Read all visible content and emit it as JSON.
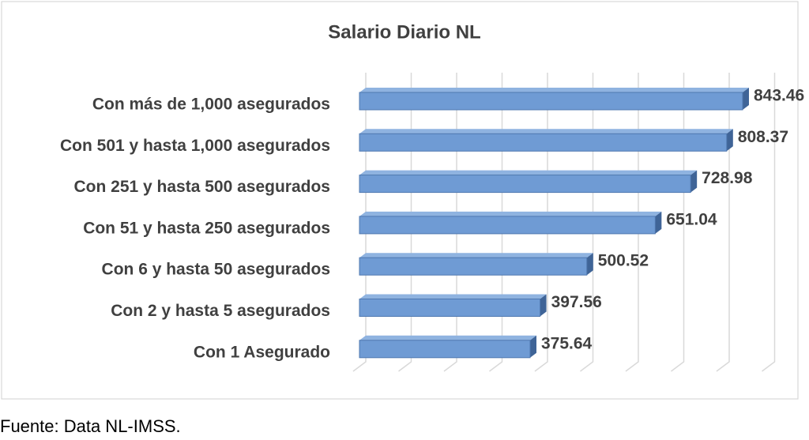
{
  "chart_data": {
    "type": "bar",
    "orientation": "horizontal",
    "title": "Salario Diario NL",
    "categories": [
      "Con más de 1,000 asegurados",
      "Con 501 y hasta 1,000 asegurados",
      "Con 251 y hasta 500 asegurados",
      "Con 51 y hasta 250 asegurados",
      "Con 6 y hasta 50 asegurados",
      "Con 2 y hasta 5 asegurados",
      "Con 1 Asegurado"
    ],
    "values": [
      843.46,
      808.37,
      728.98,
      651.04,
      500.52,
      397.56,
      375.64
    ],
    "color": "#6f9bd4",
    "xlim": [
      0,
      900
    ],
    "xticks": [
      0,
      100,
      200,
      300,
      400,
      500,
      600,
      700,
      800,
      900
    ],
    "grid": true,
    "source": "Fuente: Data NL-IMSS."
  }
}
